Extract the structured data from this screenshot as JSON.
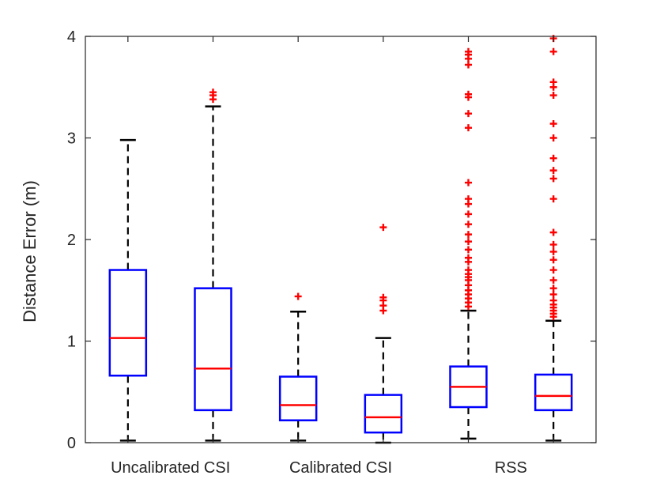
{
  "chart_data": {
    "type": "boxplot",
    "title": "",
    "xlabel": "",
    "ylabel": "Distance Error (m)",
    "ylim": [
      0,
      4
    ],
    "yticks": [
      0,
      1,
      2,
      3,
      4
    ],
    "grid": false,
    "category_labels": [
      {
        "text": "Uncalibrated CSI",
        "center_of_boxes": [
          1,
          2
        ]
      },
      {
        "text": "Calibrated CSI",
        "center_of_boxes": [
          3,
          4
        ]
      },
      {
        "text": "RSS",
        "center_of_boxes": [
          5,
          6
        ]
      }
    ],
    "colors": {
      "box": "#0000ff",
      "median": "#ff0000",
      "whisker": "#000000",
      "outlier": "#ff0000",
      "axes": "#262626"
    },
    "boxes": [
      {
        "index": 1,
        "group": "Uncalibrated CSI",
        "whisker_low": 0.02,
        "q1": 0.66,
        "median": 1.03,
        "q3": 1.7,
        "whisker_high": 2.98,
        "outliers": []
      },
      {
        "index": 2,
        "group": "Uncalibrated CSI",
        "whisker_low": 0.02,
        "q1": 0.32,
        "median": 0.73,
        "q3": 1.52,
        "whisker_high": 3.31,
        "outliers": [
          3.38,
          3.42,
          3.45
        ]
      },
      {
        "index": 3,
        "group": "Calibrated CSI",
        "whisker_low": 0.02,
        "q1": 0.22,
        "median": 0.37,
        "q3": 0.65,
        "whisker_high": 1.29,
        "outliers": [
          1.44
        ]
      },
      {
        "index": 4,
        "group": "Calibrated CSI",
        "whisker_low": 0.0,
        "q1": 0.1,
        "median": 0.25,
        "q3": 0.47,
        "whisker_high": 1.03,
        "outliers": [
          1.3,
          1.35,
          1.4,
          1.43,
          2.12
        ]
      },
      {
        "index": 5,
        "group": "RSS",
        "whisker_low": 0.04,
        "q1": 0.35,
        "median": 0.55,
        "q3": 0.75,
        "whisker_high": 1.3,
        "outliers": [
          1.34,
          1.38,
          1.42,
          1.46,
          1.5,
          1.55,
          1.6,
          1.63,
          1.66,
          1.7,
          1.78,
          1.82,
          1.9,
          1.98,
          2.05,
          2.15,
          2.25,
          2.35,
          2.4,
          2.56,
          3.1,
          3.24,
          3.4,
          3.43,
          3.72,
          3.78,
          3.82,
          3.85
        ]
      },
      {
        "index": 6,
        "group": "RSS",
        "whisker_low": 0.02,
        "q1": 0.32,
        "median": 0.46,
        "q3": 0.67,
        "whisker_high": 1.2,
        "outliers": [
          1.24,
          1.27,
          1.3,
          1.33,
          1.36,
          1.4,
          1.46,
          1.52,
          1.6,
          1.7,
          1.8,
          1.88,
          1.95,
          2.07,
          2.4,
          2.6,
          2.68,
          2.8,
          3.0,
          3.14,
          3.42,
          3.5,
          3.55,
          3.85,
          3.98
        ]
      }
    ]
  }
}
